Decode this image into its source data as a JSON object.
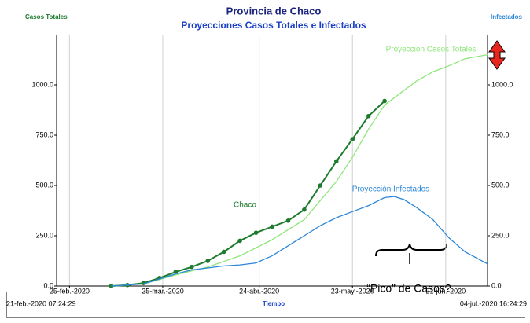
{
  "chart_data": {
    "type": "line",
    "title": "Provincia de Chaco",
    "subtitle": "Proyecciones Casos Totales e Infectados",
    "y_label": "Casos Totales",
    "y2_label": "Infectados",
    "x_label": "Tiempo",
    "start_label": "21-feb.-2020 07:24:29",
    "end_label": "04-jul.-2020 16:24:29",
    "annotation": "“Pico” de Casos?",
    "xlim": [
      "2020-02-21",
      "2020-07-04"
    ],
    "xticks": [
      {
        "value": "2020-02-25",
        "label": "25-feb.-2020"
      },
      {
        "value": "2020-03-25",
        "label": "25-mar.-2020"
      },
      {
        "value": "2020-04-24",
        "label": "24-abr.-2020"
      },
      {
        "value": "2020-05-23",
        "label": "23-may.-2020"
      },
      {
        "value": "2020-06-21",
        "label": "21-jun.-2020"
      }
    ],
    "ylim": [
      0,
      1250
    ],
    "yticks": [
      {
        "value": 0,
        "label": "0.0"
      },
      {
        "value": 250,
        "label": "250.0"
      },
      {
        "value": 500,
        "label": "500.0"
      },
      {
        "value": 750,
        "label": "750.0"
      },
      {
        "value": 1000,
        "label": "1000.0"
      }
    ],
    "y2lim": [
      0,
      1250
    ],
    "y2ticks": [
      {
        "value": 0,
        "label": "0.0"
      },
      {
        "value": 250,
        "label": "250.0"
      },
      {
        "value": 500,
        "label": "500.0"
      },
      {
        "value": 750,
        "label": "750.0"
      },
      {
        "value": 1000,
        "label": "1000.0"
      }
    ],
    "grid": "x",
    "series": [
      {
        "name": "Chaco",
        "color": "#1e7b2e",
        "markers": true,
        "x": [
          "2020-03-09",
          "2020-03-14",
          "2020-03-19",
          "2020-03-24",
          "2020-03-29",
          "2020-04-03",
          "2020-04-08",
          "2020-04-13",
          "2020-04-18",
          "2020-04-23",
          "2020-04-28",
          "2020-05-03",
          "2020-05-08",
          "2020-05-13",
          "2020-05-18",
          "2020-05-23",
          "2020-05-28",
          "2020-06-02"
        ],
        "values": [
          0,
          5,
          15,
          40,
          70,
          95,
          125,
          170,
          225,
          265,
          295,
          325,
          380,
          500,
          620,
          730,
          845,
          920
        ]
      },
      {
        "name": "Proyección Casos Totales",
        "color": "#8ee67a",
        "markers": false,
        "x": [
          "2020-03-09",
          "2020-03-19",
          "2020-03-29",
          "2020-04-08",
          "2020-04-18",
          "2020-04-28",
          "2020-05-08",
          "2020-05-18",
          "2020-05-23",
          "2020-05-28",
          "2020-06-02",
          "2020-06-07",
          "2020-06-12",
          "2020-06-17",
          "2020-06-22",
          "2020-06-27",
          "2020-07-04"
        ],
        "values": [
          0,
          10,
          55,
          95,
          150,
          230,
          330,
          520,
          640,
          780,
          900,
          960,
          1020,
          1065,
          1095,
          1130,
          1150
        ]
      },
      {
        "name": "Proyección Infectados",
        "color": "#2b86d9",
        "markers": false,
        "axis": "y2",
        "x": [
          "2020-03-09",
          "2020-03-19",
          "2020-03-29",
          "2020-04-03",
          "2020-04-08",
          "2020-04-13",
          "2020-04-18",
          "2020-04-23",
          "2020-04-28",
          "2020-05-03",
          "2020-05-08",
          "2020-05-13",
          "2020-05-18",
          "2020-05-23",
          "2020-05-28",
          "2020-06-02",
          "2020-06-05",
          "2020-06-08",
          "2020-06-12",
          "2020-06-17",
          "2020-06-22",
          "2020-06-27",
          "2020-07-04"
        ],
        "values": [
          0,
          10,
          60,
          80,
          90,
          100,
          105,
          115,
          150,
          200,
          250,
          300,
          340,
          370,
          400,
          440,
          445,
          430,
          390,
          330,
          240,
          170,
          110
        ]
      }
    ]
  }
}
